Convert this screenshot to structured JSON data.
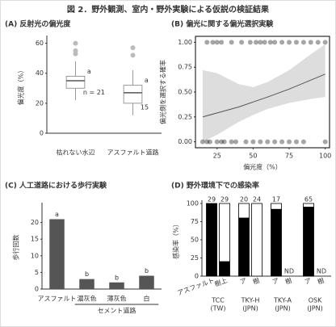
{
  "title": "図 2．野外観測、室内・野外実験による仮説の検証結果",
  "chart_data": [
    {
      "type": "box",
      "title": "(A) 反射光の偏光度",
      "y_label": "偏光度（%）",
      "categories": [
        "枯れない水辺",
        "アスファルト道路"
      ],
      "boxes": [
        {
          "min": 22,
          "q1": 30,
          "median": 35,
          "q3": 38,
          "max": 48,
          "outliers": [
            53,
            55,
            60
          ]
        },
        {
          "min": 12,
          "q1": 20,
          "median": 27,
          "q3": 32,
          "max": 42,
          "outliers": [
            52,
            57
          ]
        }
      ],
      "letters": [
        "a",
        "a"
      ],
      "n_labels": [
        "n = 21",
        "15"
      ],
      "ylim": [
        0,
        63
      ],
      "yticks": [
        0,
        20,
        40,
        60
      ],
      "color": "#999999"
    },
    {
      "type": "logistic",
      "title": "(B) 偏光に関する偏光選択実験",
      "x_label": "偏光度（%）",
      "y_label": "偏光側を選択する確率",
      "points_1_x": [
        18,
        22,
        25,
        28,
        35,
        42,
        48,
        52,
        55,
        58,
        62,
        65,
        70,
        75,
        80,
        85,
        90,
        95,
        100
      ],
      "points_0_x": [
        15,
        18,
        20,
        25,
        28,
        30,
        35,
        38,
        45,
        50,
        55,
        60,
        65,
        70,
        75,
        80,
        85,
        100
      ],
      "x": [
        15,
        25,
        40,
        50,
        60,
        75,
        90,
        100
      ],
      "fit": [
        0.25,
        0.29,
        0.35,
        0.4,
        0.45,
        0.53,
        0.62,
        0.68
      ],
      "lower": [
        0.0,
        0.07,
        0.2,
        0.27,
        0.33,
        0.39,
        0.43,
        0.45
      ],
      "upper": [
        0.72,
        0.69,
        0.58,
        0.55,
        0.6,
        0.72,
        0.88,
        0.98
      ],
      "xlim": [
        10,
        103
      ],
      "ylim": [
        -0.06,
        1.06
      ],
      "xticks": [
        25,
        50,
        75,
        100
      ],
      "yticks": [
        {
          "value": 0,
          "label": "0.00"
        },
        {
          "value": 0.25,
          "label": "0.25"
        },
        {
          "value": 0.5,
          "label": "0.50"
        },
        {
          "value": 0.75,
          "label": "0.75"
        },
        {
          "value": 1,
          "label": "1.00"
        }
      ]
    },
    {
      "type": "bar",
      "title": "(C) 人工道路における歩行実験",
      "y_label": "歩行回数",
      "categories": [
        "アスファルト",
        "濃灰色",
        "薄灰色",
        "白"
      ],
      "values": [
        21,
        3,
        2,
        4
      ],
      "letters": [
        "a",
        "b",
        "b",
        "b"
      ],
      "group_label": "セメント道路",
      "ylim": [
        0,
        25
      ],
      "yticks": [
        0,
        5,
        10,
        15,
        20
      ],
      "color": "#555555"
    },
    {
      "type": "stacked_bar",
      "title": "(D) 野外環境下での感染率",
      "y_label": "感染率（%）",
      "categories": [
        "アスファルト",
        "樹上",
        "ア",
        "樹",
        "ア",
        "樹",
        "ア",
        "樹"
      ],
      "groups": [
        [
          "TCC",
          "(TW)"
        ],
        [
          "TKY-H",
          "(JPN)"
        ],
        [
          "TKY-A",
          "(JPN)"
        ],
        [
          "OSK",
          "(JPN)"
        ]
      ],
      "n": [
        29,
        29,
        20,
        24,
        17,
        null,
        65,
        null
      ],
      "notes": [
        null,
        null,
        null,
        null,
        null,
        "ND",
        null,
        "ND"
      ],
      "series": [
        {
          "color": "#000000",
          "values": [
            100,
            20,
            80,
            0,
            92,
            null,
            95,
            null
          ]
        },
        {
          "color": "#ffffff",
          "values": [
            0,
            80,
            20,
            100,
            8,
            null,
            5,
            null
          ]
        }
      ],
      "ylim": [
        0,
        100
      ],
      "yticks": [
        0,
        25,
        50,
        75,
        100
      ]
    }
  ]
}
